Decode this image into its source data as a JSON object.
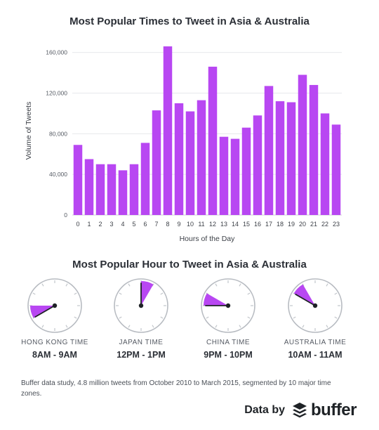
{
  "chart_data": [
    {
      "type": "bar",
      "title": "Most Popular Times to Tweet in Asia & Australia",
      "xlabel": "Hours of the Day",
      "ylabel": "Volume of Tweets",
      "categories": [
        "0",
        "1",
        "2",
        "3",
        "4",
        "5",
        "6",
        "7",
        "8",
        "9",
        "10",
        "11",
        "12",
        "13",
        "14",
        "15",
        "16",
        "17",
        "18",
        "19",
        "20",
        "21",
        "22",
        "23"
      ],
      "values": [
        69000,
        55000,
        50000,
        50000,
        44000,
        50000,
        71000,
        103000,
        166000,
        110000,
        102000,
        113000,
        146000,
        77000,
        75000,
        86000,
        98000,
        127000,
        112000,
        111000,
        138000,
        128000,
        100000,
        89000
      ],
      "ylim": [
        0,
        166000
      ],
      "yticks": [
        0,
        40000,
        80000,
        120000,
        160000
      ],
      "ytick_labels": [
        "0",
        "40,000",
        "80,000",
        "120,000",
        "160,000"
      ],
      "grid": true,
      "bar_color": "#b847f2"
    },
    {
      "type": "clock",
      "title": "Most Popular Hour to Tweet in Asia & Australia",
      "clocks": [
        {
          "zone": "HONG KONG TIME",
          "label": "8AM - 9AM",
          "start_hour": 8,
          "end_hour": 9
        },
        {
          "zone": "JAPAN TIME",
          "label": "12PM - 1PM",
          "start_hour": 12,
          "end_hour": 13
        },
        {
          "zone": "CHINA TIME",
          "label": "9PM - 10PM",
          "start_hour": 21,
          "end_hour": 22
        },
        {
          "zone": "AUSTRALIA TIME",
          "label": "10AM - 11AM",
          "start_hour": 10,
          "end_hour": 11
        }
      ],
      "wedge_color": "#b847f2"
    }
  ],
  "footnote": "Buffer data study, 4.8 million tweets from October 2010 to March 2015, segmented by 10 major time zones.",
  "credit": {
    "prefix": "Data by",
    "brand": "buffer",
    "logo_icon": "buffer-stack-icon"
  }
}
